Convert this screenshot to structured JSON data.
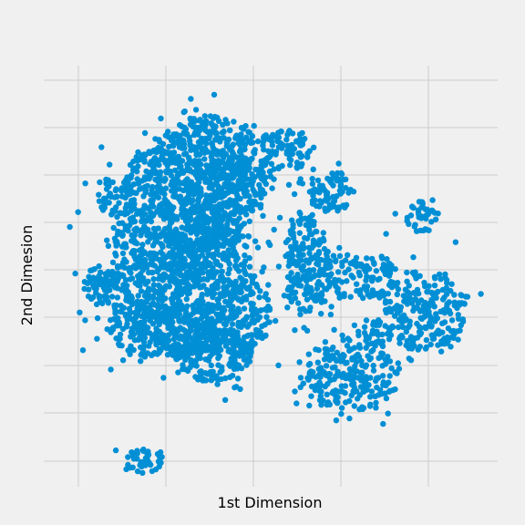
{
  "chart_data": {
    "type": "scatter",
    "title": "",
    "xlabel": "1st Dimension",
    "ylabel": "2nd Dimesion",
    "xtick_labels": [],
    "ytick_labels": [],
    "grid": true,
    "legend": "none",
    "point_color": "#008fd5",
    "background_color": "#f0f0f0",
    "grid_color": "#cbcbcb",
    "xlim": [
      -50,
      50
    ],
    "ylim": [
      -50,
      50
    ],
    "series": [
      {
        "clusters": [
          {
            "cx": -14,
            "cy": 31,
            "rx": 11,
            "ry": 7,
            "n": 260
          },
          {
            "cx": -25,
            "cy": 22,
            "rx": 8,
            "ry": 8,
            "n": 200
          },
          {
            "cx": -34,
            "cy": 19,
            "rx": 4,
            "ry": 5,
            "n": 60
          },
          {
            "cx": -22,
            "cy": 10,
            "rx": 13,
            "ry": 8,
            "n": 320
          },
          {
            "cx": -12,
            "cy": 18,
            "rx": 7,
            "ry": 12,
            "n": 240
          },
          {
            "cx": -6,
            "cy": 22,
            "rx": 7,
            "ry": 7,
            "n": 150
          },
          {
            "cx": -27,
            "cy": -2,
            "rx": 10,
            "ry": 9,
            "n": 280
          },
          {
            "cx": -14,
            "cy": 1,
            "rx": 10,
            "ry": 12,
            "n": 320
          },
          {
            "cx": -37,
            "cy": -2,
            "rx": 4,
            "ry": 5,
            "n": 60
          },
          {
            "cx": -23,
            "cy": -13,
            "rx": 12,
            "ry": 7,
            "n": 300
          },
          {
            "cx": -13,
            "cy": -18,
            "rx": 9,
            "ry": 7,
            "n": 220
          },
          {
            "cx": -6,
            "cy": -9,
            "rx": 6,
            "ry": 10,
            "n": 150
          },
          {
            "cx": 3,
            "cy": 30,
            "rx": 6,
            "ry": 5,
            "n": 90
          },
          {
            "cx": 13,
            "cy": 20,
            "rx": 5,
            "ry": 5,
            "n": 80
          },
          {
            "cx": 8,
            "cy": 3,
            "rx": 5,
            "ry": 13,
            "n": 200
          },
          {
            "cx": 33,
            "cy": 14,
            "rx": 4,
            "ry": 4,
            "n": 40
          },
          {
            "cx": 20,
            "cy": 0,
            "rx": 8,
            "ry": 6,
            "n": 120
          },
          {
            "cx": 34,
            "cy": -8,
            "rx": 9,
            "ry": 10,
            "n": 230
          },
          {
            "cx": 17,
            "cy": -24,
            "rx": 11,
            "ry": 8,
            "n": 240
          },
          {
            "cx": 23,
            "cy": -14,
            "rx": 4,
            "ry": 4,
            "n": 40
          },
          {
            "cx": -28,
            "cy": -44,
            "rx": 4,
            "ry": 3,
            "n": 45
          }
        ]
      }
    ]
  }
}
